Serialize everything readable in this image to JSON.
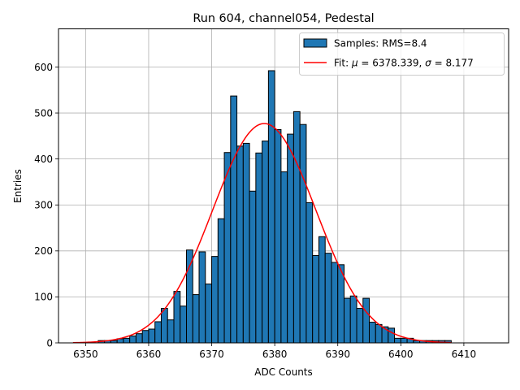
{
  "chart_data": {
    "type": "histogram",
    "title": "Run 604, channel054, Pedestal",
    "xlabel": "ADC Counts",
    "ylabel": "Entries",
    "xlim": [
      6345.7,
      6417.1
    ],
    "ylim": [
      0,
      683
    ],
    "xticks": [
      6350,
      6360,
      6370,
      6380,
      6390,
      6400,
      6410
    ],
    "yticks": [
      0,
      100,
      200,
      300,
      400,
      500,
      600
    ],
    "grid": true,
    "bin_width": 1,
    "histogram": {
      "name": "Samples: RMS=8.4",
      "color": "#1f77b4",
      "edge_color": "#000000",
      "bin_starts": [
        6352,
        6353,
        6354,
        6355,
        6356,
        6357,
        6358,
        6359,
        6360,
        6361,
        6362,
        6363,
        6364,
        6365,
        6366,
        6367,
        6368,
        6369,
        6370,
        6371,
        6372,
        6373,
        6374,
        6375,
        6376,
        6377,
        6378,
        6379,
        6380,
        6381,
        6382,
        6383,
        6384,
        6385,
        6386,
        6387,
        6388,
        6389,
        6390,
        6391,
        6392,
        6393,
        6394,
        6395,
        6396,
        6397,
        6398,
        6399,
        6400,
        6401,
        6402,
        6403,
        6404,
        6405,
        6406,
        6407
      ],
      "counts": [
        5,
        5,
        5,
        9,
        10,
        15,
        20,
        27,
        30,
        46,
        75,
        50,
        112,
        80,
        202,
        105,
        198,
        128,
        188,
        270,
        414,
        537,
        428,
        434,
        330,
        413,
        439,
        592,
        464,
        372,
        454,
        503,
        475,
        305,
        190,
        231,
        195,
        175,
        170,
        97,
        102,
        75,
        97,
        45,
        40,
        35,
        32,
        10,
        10,
        10,
        5,
        5,
        5,
        5,
        5,
        5
      ]
    },
    "fit": {
      "name_prefix": "Fit: ",
      "mu_symbol": "μ",
      "mu_text": " = 6378.339, ",
      "sigma_symbol": "σ",
      "sigma_text": " = 8.177",
      "mu": 6378.339,
      "sigma": 8.177,
      "amplitude": 477,
      "x_range": [
        6348,
        6408
      ],
      "color": "#ff0000"
    },
    "legend_position": "upper right"
  }
}
